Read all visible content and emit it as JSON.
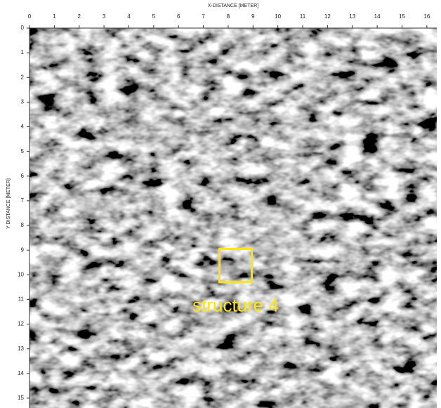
{
  "chart_data": {
    "type": "image",
    "x_label": "X-DISTANCE [METER]",
    "y_label": "Y DISTANCE [METER]",
    "xlim": [
      0,
      16.4
    ],
    "ylim": [
      0,
      15.4
    ],
    "xticks": [
      0,
      1,
      2,
      3,
      4,
      5,
      6,
      7,
      8,
      9,
      10,
      11,
      12,
      13,
      14,
      15,
      16
    ],
    "yticks": [
      0,
      1,
      2,
      3,
      4,
      5,
      6,
      7,
      8,
      9,
      10,
      11,
      12,
      13,
      14,
      15
    ],
    "annotation": {
      "text": "structure 4",
      "box": [
        7.65,
        8.95,
        8.95,
        10.3
      ],
      "color": "#ffe600"
    }
  }
}
